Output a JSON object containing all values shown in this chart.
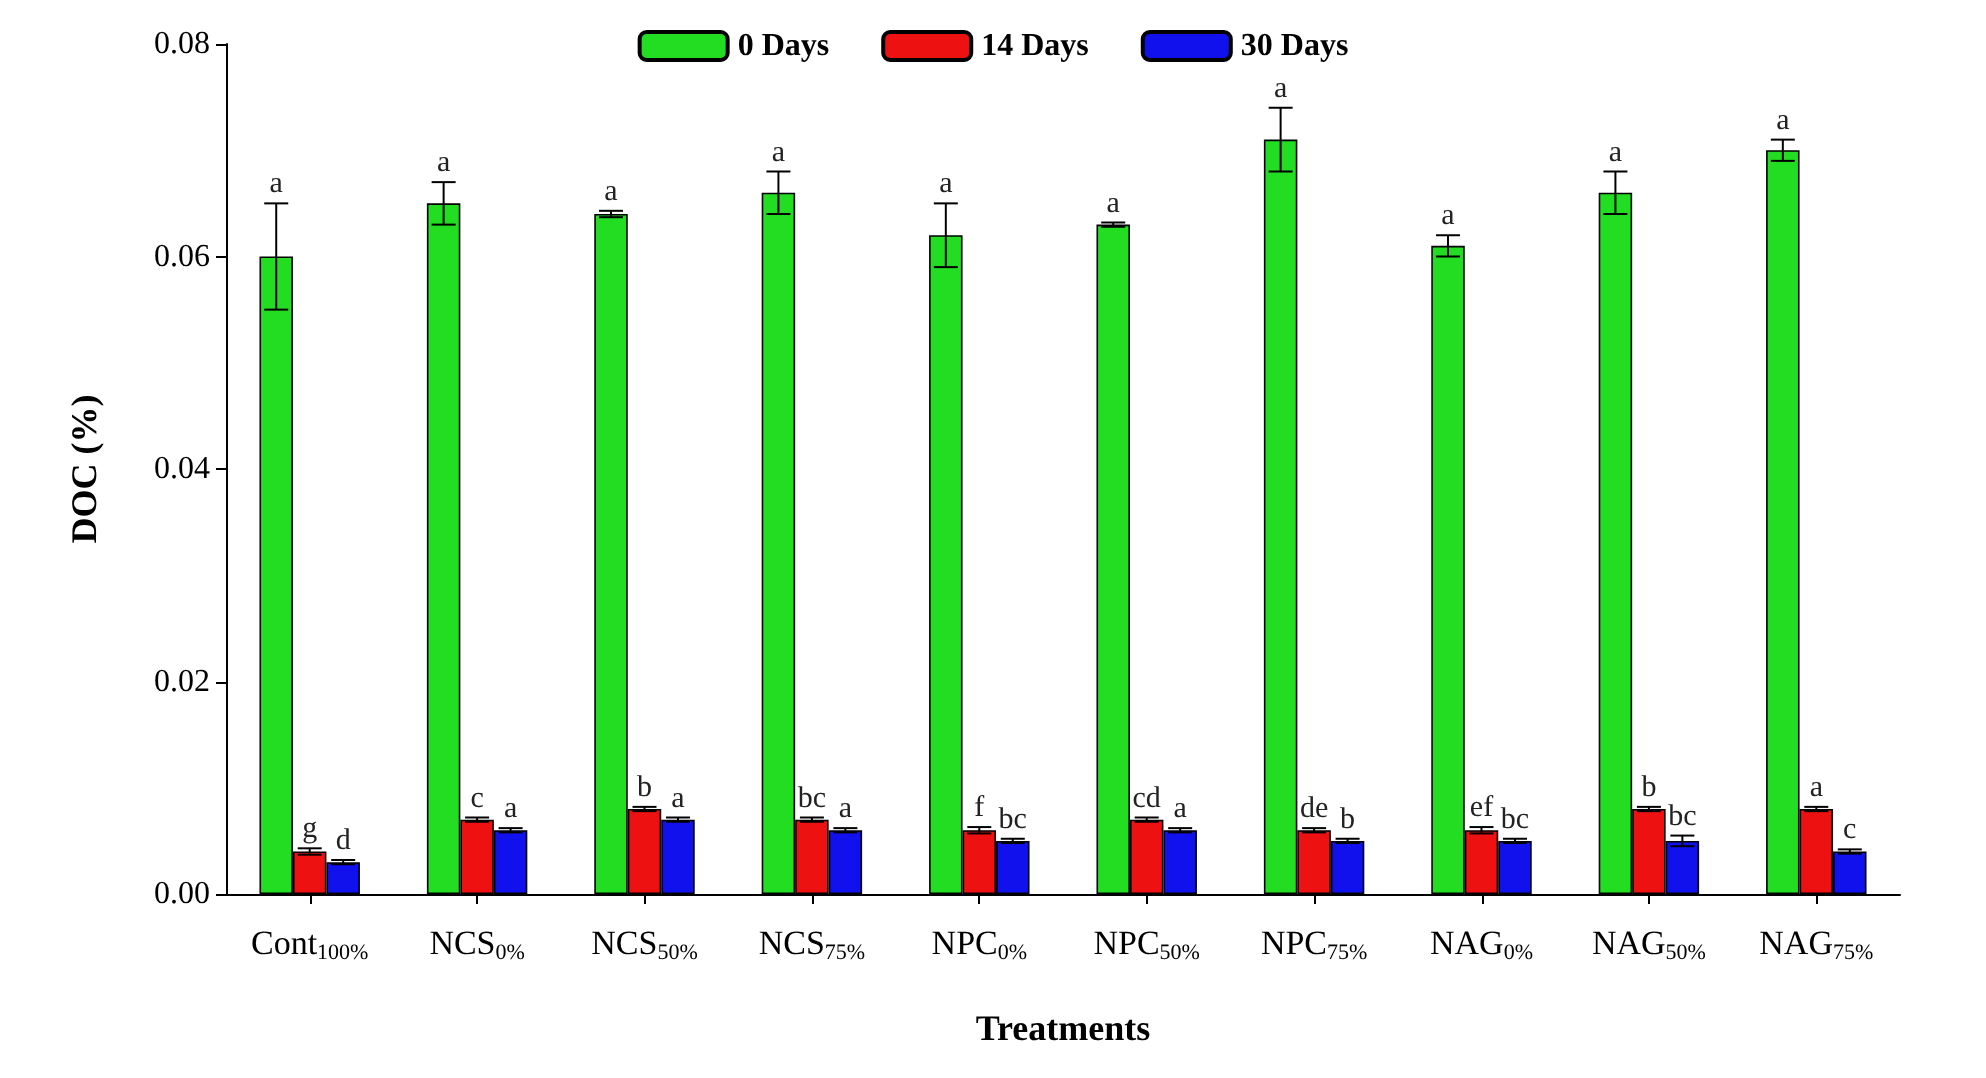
{
  "chart_data": {
    "type": "bar",
    "xlabel": "Treatments",
    "ylabel": "DOC (%)",
    "categories": [
      "Cont$_{100%}$",
      "NCS$_{0%}$",
      "NCS$_{50%}$",
      "NCS$_{75%}$",
      "NPC$_{0%}$",
      "NPC$_{50%}$",
      "NPC$_{75%}$",
      "NAG$_{0%}$",
      "NAG$_{50%}$",
      "NAG$_{75%}$"
    ],
    "series": [
      {
        "name": "0 Days",
        "color": "#22dd22",
        "values": [
          0.06,
          0.065,
          0.064,
          0.066,
          0.062,
          0.063,
          0.071,
          0.061,
          0.066,
          0.07
        ],
        "errors": [
          0.005,
          0.002,
          0.0003,
          0.002,
          0.003,
          0.0002,
          0.003,
          0.001,
          0.002,
          0.001
        ],
        "value_labels": [
          "a",
          "a",
          "a",
          "a",
          "a",
          "a",
          "a",
          "a",
          "a",
          "a"
        ]
      },
      {
        "name": "14 Days",
        "color": "#ee1111",
        "values": [
          0.004,
          0.007,
          0.008,
          0.007,
          0.006,
          0.007,
          0.006,
          0.006,
          0.008,
          0.008
        ],
        "errors": [
          0.0003,
          0.0002,
          0.0002,
          0.0002,
          0.0003,
          0.0002,
          0.0002,
          0.0003,
          0.0002,
          0.0002
        ],
        "value_labels": [
          "g",
          "c",
          "b",
          "bc",
          "f",
          "cd",
          "de",
          "ef",
          "b",
          "a"
        ]
      },
      {
        "name": "30 Days",
        "color": "#1111ee",
        "values": [
          0.003,
          0.006,
          0.007,
          0.006,
          0.005,
          0.006,
          0.005,
          0.005,
          0.005,
          0.004
        ],
        "errors": [
          0.0002,
          0.0002,
          0.0002,
          0.0002,
          0.0002,
          0.0002,
          0.0002,
          0.0002,
          0.0005,
          0.0002
        ],
        "value_labels": [
          "d",
          "a",
          "a",
          "a",
          "bc",
          "a",
          "b",
          "bc",
          "bc",
          "c"
        ]
      }
    ],
    "ylim": [
      0,
      0.08
    ],
    "yticks": [
      {
        "value": 0,
        "label": "0.00"
      },
      0.02,
      0.04,
      0.06,
      0.08
    ],
    "grid": false,
    "legend": "top"
  }
}
